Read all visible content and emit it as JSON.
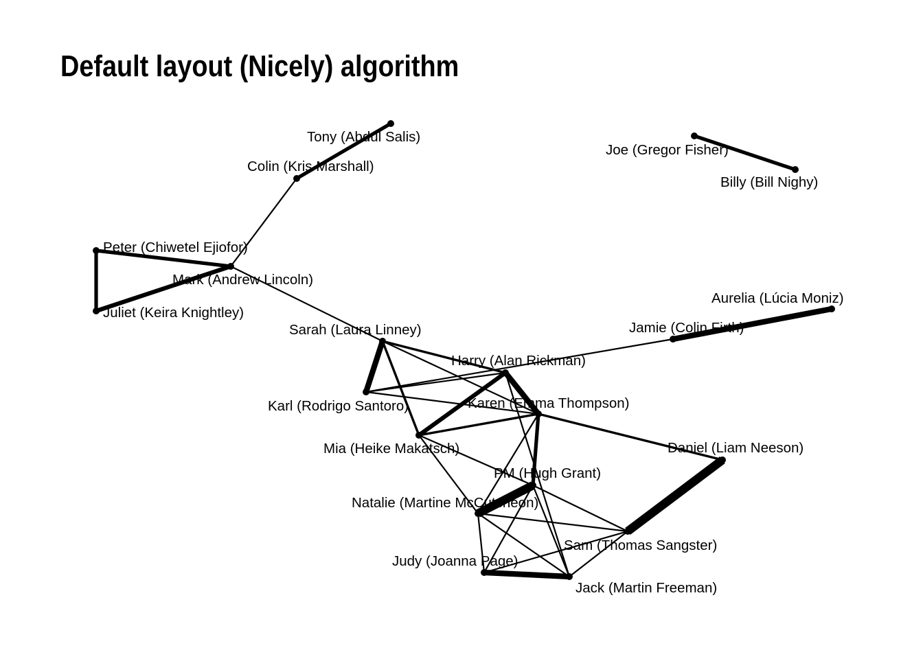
{
  "title": "Default layout (Nicely) algorithm",
  "colors": {
    "edge": "#000000",
    "node": "#000000",
    "text": "#000000",
    "background": "#ffffff"
  },
  "nodes": [
    {
      "id": "tony",
      "label": "Tony (Abdul Salis)"
    },
    {
      "id": "colin",
      "label": "Colin (Kris Marshall)"
    },
    {
      "id": "joe",
      "label": "Joe (Gregor Fisher)"
    },
    {
      "id": "billy",
      "label": "Billy (Bill Nighy)"
    },
    {
      "id": "peter",
      "label": "Peter (Chiwetel Ejiofor)"
    },
    {
      "id": "mark",
      "label": "Mark (Andrew Lincoln)"
    },
    {
      "id": "juliet",
      "label": "Juliet (Keira Knightley)"
    },
    {
      "id": "aurelia",
      "label": "Aurelia (Lúcia Moniz)"
    },
    {
      "id": "jamie",
      "label": "Jamie (Colin Firth)"
    },
    {
      "id": "sarah",
      "label": "Sarah (Laura Linney)"
    },
    {
      "id": "harry",
      "label": "Harry (Alan Rickman)"
    },
    {
      "id": "karl",
      "label": "Karl (Rodrigo Santoro)"
    },
    {
      "id": "karen",
      "label": "Karen (Emma Thompson)"
    },
    {
      "id": "mia",
      "label": "Mia (Heike Makatsch)"
    },
    {
      "id": "daniel",
      "label": "Daniel (Liam Neeson)"
    },
    {
      "id": "pm",
      "label": "PM (Hugh Grant)"
    },
    {
      "id": "natalie",
      "label": "Natalie (Martine McCutcheon)"
    },
    {
      "id": "sam",
      "label": "Sam (Thomas Sangster)"
    },
    {
      "id": "judy",
      "label": "Judy (Joanna Page)"
    },
    {
      "id": "jack",
      "label": "Jack (Martin Freeman)"
    }
  ],
  "edges": [
    {
      "source": "tony",
      "target": "colin",
      "weight": 3
    },
    {
      "source": "joe",
      "target": "billy",
      "weight": 3
    },
    {
      "source": "colin",
      "target": "mark",
      "weight": 1
    },
    {
      "source": "peter",
      "target": "mark",
      "weight": 3
    },
    {
      "source": "peter",
      "target": "juliet",
      "weight": 3
    },
    {
      "source": "juliet",
      "target": "mark",
      "weight": 4
    },
    {
      "source": "mark",
      "target": "sarah",
      "weight": 1
    },
    {
      "source": "aurelia",
      "target": "jamie",
      "weight": 5
    },
    {
      "source": "jamie",
      "target": "karl",
      "weight": 1
    },
    {
      "source": "sarah",
      "target": "karl",
      "weight": 5
    },
    {
      "source": "sarah",
      "target": "harry",
      "weight": 2
    },
    {
      "source": "sarah",
      "target": "mia",
      "weight": 2
    },
    {
      "source": "sarah",
      "target": "karen",
      "weight": 1
    },
    {
      "source": "harry",
      "target": "karl",
      "weight": 1
    },
    {
      "source": "harry",
      "target": "mia",
      "weight": 4
    },
    {
      "source": "harry",
      "target": "karen",
      "weight": 5
    },
    {
      "source": "harry",
      "target": "jack",
      "weight": 1
    },
    {
      "source": "karl",
      "target": "karen",
      "weight": 1
    },
    {
      "source": "karen",
      "target": "mia",
      "weight": 2
    },
    {
      "source": "karen",
      "target": "daniel",
      "weight": 2
    },
    {
      "source": "karen",
      "target": "pm",
      "weight": 3
    },
    {
      "source": "karen",
      "target": "natalie",
      "weight": 1
    },
    {
      "source": "mia",
      "target": "pm",
      "weight": 1
    },
    {
      "source": "mia",
      "target": "natalie",
      "weight": 1
    },
    {
      "source": "daniel",
      "target": "sam",
      "weight": 8
    },
    {
      "source": "pm",
      "target": "natalie",
      "weight": 8
    },
    {
      "source": "pm",
      "target": "sam",
      "weight": 1
    },
    {
      "source": "pm",
      "target": "judy",
      "weight": 1
    },
    {
      "source": "pm",
      "target": "jack",
      "weight": 1
    },
    {
      "source": "natalie",
      "target": "sam",
      "weight": 1
    },
    {
      "source": "natalie",
      "target": "judy",
      "weight": 1
    },
    {
      "source": "natalie",
      "target": "jack",
      "weight": 1
    },
    {
      "source": "judy",
      "target": "jack",
      "weight": 5
    },
    {
      "source": "judy",
      "target": "sam",
      "weight": 1
    },
    {
      "source": "sam",
      "target": "jack",
      "weight": 1
    }
  ]
}
